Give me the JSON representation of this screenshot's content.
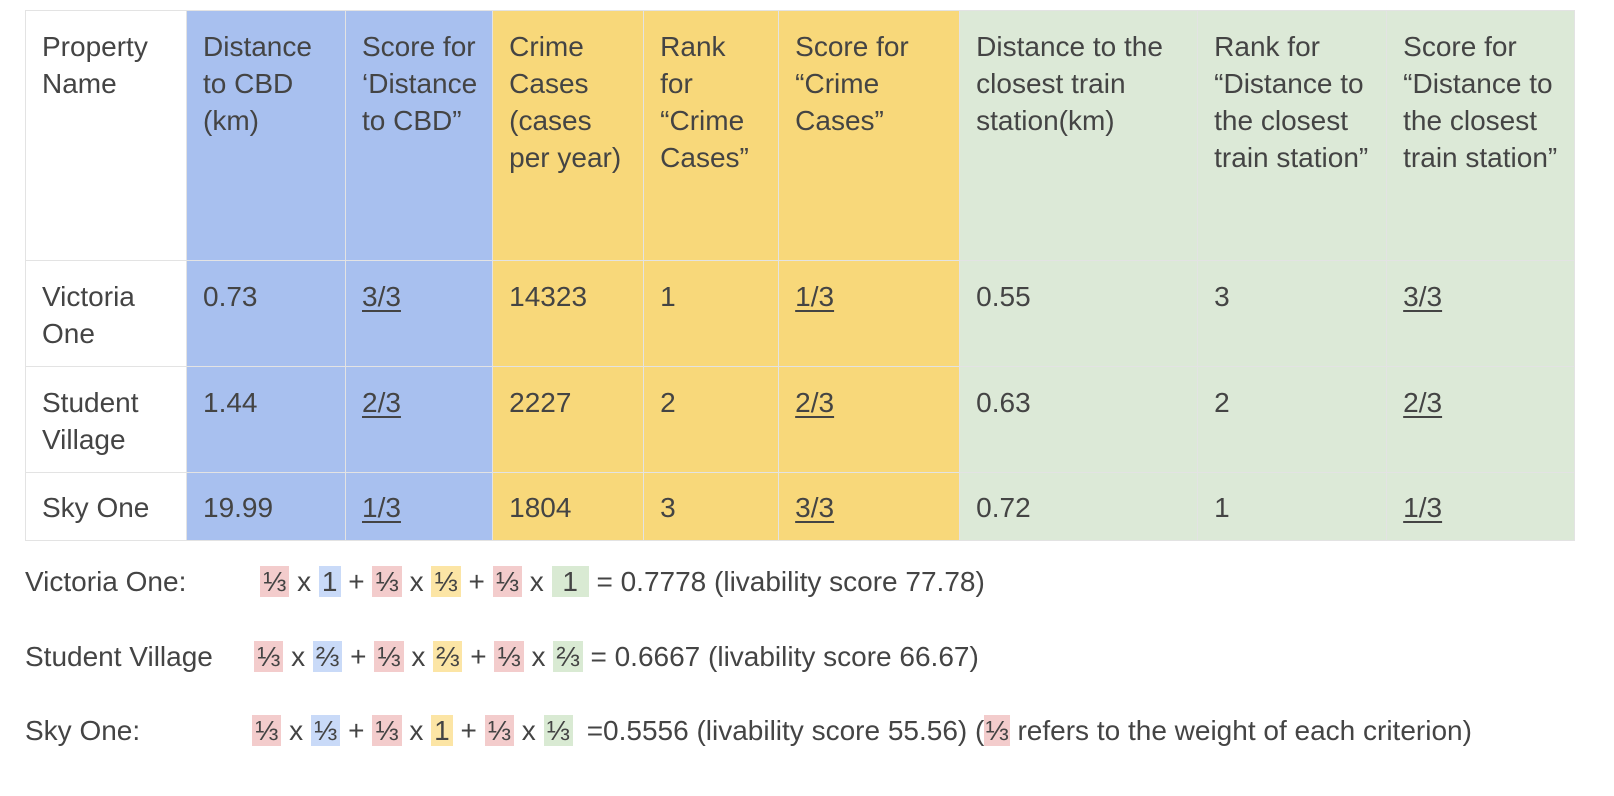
{
  "table": {
    "headers": [
      "Property Name",
      "Distance to CBD (km)",
      "Score for ‘Distance to CBD”",
      "Crime Cases (cases per year)",
      "Rank for “Crime Cases”",
      "Score for “Crime Cases”",
      "Distance to the closest train station(km)",
      "Rank for “Distance to the closest train station”",
      "Score for “Distance to the closest train station”"
    ],
    "rows": [
      [
        "Victoria One",
        "0.73",
        "3/3",
        "14323",
        "1",
        "1/3",
        "0.55",
        "3",
        "3/3"
      ],
      [
        "Student Village",
        "1.44",
        "2/3",
        "2227",
        "2",
        "2/3",
        "0.63",
        "2",
        "2/3"
      ],
      [
        "Sky One",
        "19.99",
        "1/3",
        "1804",
        "3",
        "3/3",
        "0.72",
        "1",
        "1/3"
      ]
    ]
  },
  "colors": {
    "distance_cbd_columns": "#a8c0ef",
    "crime_columns": "#f8d87a",
    "train_station_columns": "#dce9d7",
    "weight_highlight": "#f3cccc",
    "cbd_score_highlight": "#c9daf8",
    "crime_score_highlight": "#fce5a5",
    "train_score_highlight": "#d9ead3"
  },
  "formulas": [
    {
      "label": "Victoria One:",
      "weight1": "⅓",
      "x1": "x",
      "score1": "1",
      "plus1": "+",
      "weight2": "⅓",
      "x2": "x",
      "score2": "⅓",
      "plus2": "+",
      "weight3": "⅓",
      "x3": "x",
      "score3": " 1 ",
      "result": "= 0.7778 (livability score 77.78)"
    },
    {
      "label": "Student Village",
      "weight1": "⅓",
      "x1": "x",
      "score1": "⅔",
      "plus1": "+",
      "weight2": "⅓",
      "x2": "x",
      "score2": "⅔",
      "plus2": "+",
      "weight3": "⅓",
      "x3": "x",
      "score3": "⅔",
      "result": "= 0.6667 (livability score 66.67)"
    },
    {
      "label": "Sky One:",
      "weight1": "⅓",
      "x1": "x",
      "score1": "⅓",
      "plus1": "+",
      "weight2": "⅓",
      "x2": "x",
      "score2": "1",
      "plus2": "+",
      "weight3": "⅓",
      "x3": "x",
      "score3": "⅓",
      "result": "=0.5556 (livability score 55.56) (",
      "note_weight": "⅓",
      "note_text": " refers to the weight of each criterion)"
    }
  ]
}
